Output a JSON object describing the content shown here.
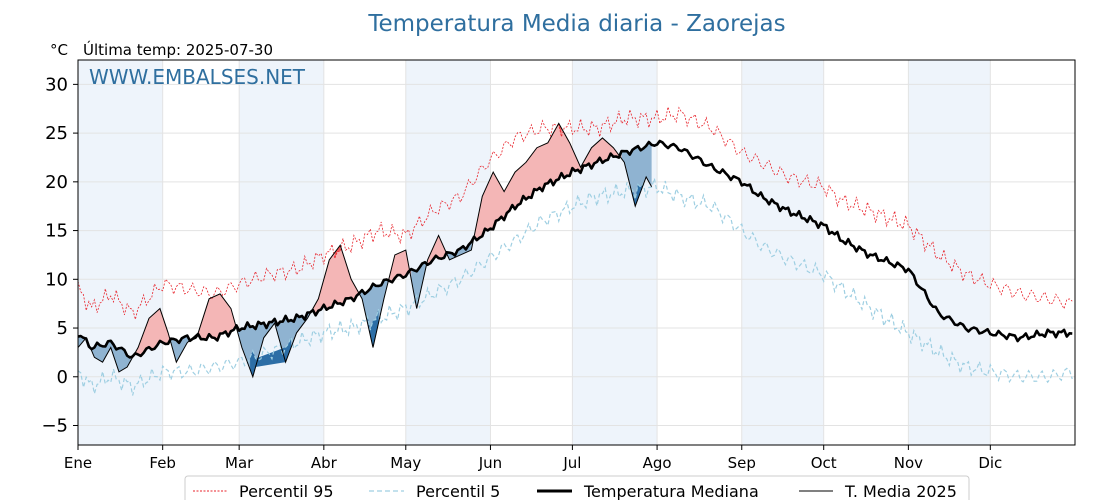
{
  "chart_data": {
    "type": "line",
    "title": "Temperatura Media diaria - Zaorejas",
    "unit_label": "°C",
    "last_temp_label": "Última temp: 2025-07-30",
    "watermark": "WWW.EMBALSES.NET",
    "ylim": [
      -7,
      32.5
    ],
    "yticks": [
      -5,
      0,
      5,
      10,
      15,
      20,
      25,
      30
    ],
    "ytick_labels": [
      "−5",
      "0",
      "5",
      "10",
      "15",
      "20",
      "25",
      "30"
    ],
    "months": [
      "Ene",
      "Feb",
      "Mar",
      "Abr",
      "May",
      "Jun",
      "Jul",
      "Ago",
      "Sep",
      "Oct",
      "Nov",
      "Dic"
    ],
    "grid": true,
    "legend_position": "bottom-center",
    "colors": {
      "p95": "#e8232b",
      "p5": "#9fcfe2",
      "median": "#000000",
      "current": "#000000",
      "above_fill": "#f4b6b6",
      "above_fill_strong": "#ee5a5a",
      "below_fill": "#8fb3d1",
      "below_fill_strong": "#2d6ea6",
      "band": "#eef4fb",
      "title": "#2f6f9f"
    },
    "series_names": {
      "p95": "Percentil 95",
      "p5": "Percentil 5",
      "median": "Temperatura Mediana",
      "current": "T. Media 2025"
    },
    "series": {
      "p95": {
        "days": [
          0,
          5,
          12,
          20,
          31,
          40,
          50,
          59,
          70,
          80,
          90,
          100,
          110,
          120,
          130,
          140,
          150,
          160,
          170,
          181,
          190,
          200,
          212,
          220,
          232,
          243,
          250,
          260,
          273,
          280,
          290,
          304,
          315,
          325,
          334,
          345,
          355,
          364
        ],
        "values": [
          9,
          7,
          8.5,
          6.5,
          9.5,
          9,
          8.5,
          9.5,
          10.5,
          11,
          12.5,
          13.5,
          15,
          14.5,
          17,
          18.5,
          22,
          24.5,
          25.5,
          25.5,
          25.5,
          26.5,
          26.5,
          27,
          25.5,
          23,
          22,
          20.5,
          19.5,
          18,
          17,
          15.5,
          12.5,
          10.5,
          9.5,
          8.5,
          8,
          7.5
        ]
      },
      "p5": {
        "days": [
          0,
          5,
          12,
          20,
          31,
          40,
          50,
          59,
          70,
          80,
          90,
          100,
          110,
          120,
          130,
          140,
          150,
          160,
          170,
          181,
          190,
          200,
          212,
          220,
          232,
          243,
          250,
          260,
          273,
          280,
          290,
          304,
          315,
          325,
          334,
          345,
          355,
          364
        ],
        "values": [
          0.5,
          -1,
          0,
          -1,
          0.5,
          0.5,
          1,
          1.5,
          2.5,
          3.5,
          4.5,
          5,
          6,
          7,
          8.5,
          10,
          12,
          14,
          16,
          17.5,
          18.5,
          19,
          19.5,
          18.5,
          17.5,
          15,
          13.5,
          12,
          10.5,
          9,
          7,
          4.5,
          2.5,
          1,
          0.5,
          0,
          0,
          0.5
        ]
      },
      "median": {
        "days": [
          0,
          5,
          12,
          20,
          31,
          40,
          50,
          59,
          70,
          80,
          90,
          100,
          110,
          120,
          130,
          140,
          150,
          160,
          170,
          181,
          190,
          200,
          212,
          220,
          232,
          243,
          250,
          260,
          273,
          280,
          290,
          304,
          315,
          325,
          334,
          345,
          355,
          364
        ],
        "values": [
          4.5,
          3,
          3.5,
          2,
          3.5,
          4,
          4,
          5,
          5.5,
          6,
          7,
          8,
          9.5,
          10.5,
          12,
          13,
          15,
          17.5,
          19.5,
          21,
          22,
          23,
          24,
          23.5,
          21.5,
          20,
          18.5,
          17,
          15.5,
          14,
          12.5,
          11,
          6.5,
          5,
          4.5,
          4,
          4.5,
          4.5
        ]
      },
      "current": {
        "days": [
          0,
          3,
          6,
          9,
          12,
          15,
          18,
          22,
          26,
          30,
          33,
          36,
          40,
          44,
          48,
          52,
          56,
          60,
          64,
          68,
          72,
          76,
          80,
          84,
          88,
          92,
          96,
          100,
          104,
          108,
          112,
          116,
          120,
          124,
          128,
          132,
          136,
          140,
          144,
          148,
          152,
          156,
          160,
          164,
          168,
          172,
          176,
          180,
          184,
          188,
          192,
          196,
          200,
          204,
          208,
          210
        ],
        "values": [
          3,
          4,
          2,
          1.5,
          3,
          0.5,
          1,
          3,
          6,
          7,
          4.5,
          1.5,
          3.5,
          4.5,
          8,
          8.5,
          7,
          3,
          0,
          4,
          5.5,
          1.5,
          4.5,
          6,
          8,
          12,
          13.5,
          10,
          8,
          3,
          8,
          12.5,
          13,
          7,
          12,
          14.5,
          12,
          12.5,
          13,
          18.5,
          21,
          19,
          21,
          22,
          23.5,
          24,
          26,
          24,
          21.5,
          23.5,
          24.5,
          23.5,
          22,
          17.5,
          20.5,
          19.5
        ]
      }
    }
  }
}
